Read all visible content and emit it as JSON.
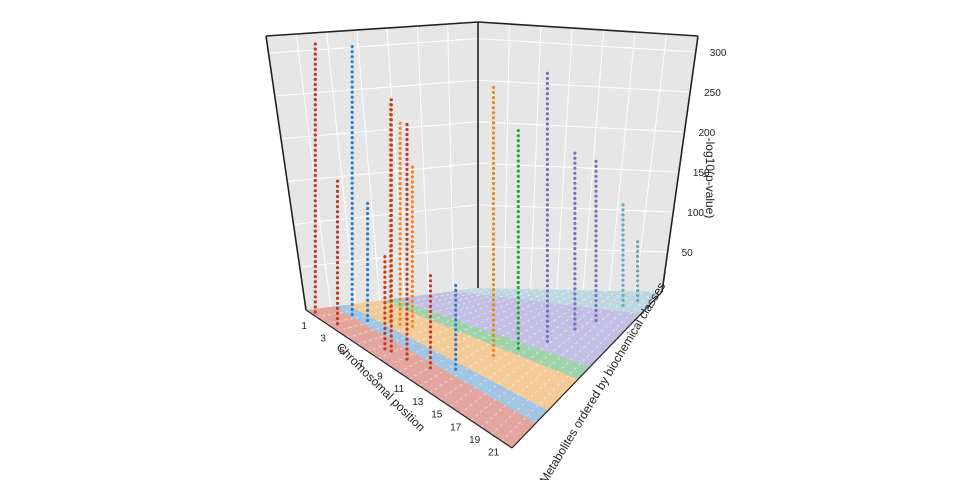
{
  "chart_data": {
    "type": "scatter",
    "projection": "3d",
    "title": "",
    "xlabel": "Chromosomal position",
    "ylabel": "Metabolites ordered by biochemical classes",
    "zlabel": "-log10(p-value)",
    "x_ticks": [
      "1",
      "3",
      "5",
      "7",
      "9",
      "11",
      "13",
      "15",
      "17",
      "19",
      "21"
    ],
    "z_ticks": [
      "50",
      "100",
      "150",
      "200",
      "250",
      "300"
    ],
    "zlim": [
      0,
      320
    ],
    "grid": true,
    "legend": "none",
    "colors": {
      "pane": "#e6e6e6",
      "gridline": "#ffffff",
      "lipid": "#c0392b",
      "amino": "#2e7fc1",
      "carbohydrate": "#e8891c",
      "nucleotide": "#2f9e44",
      "energy": "#7b6fc4",
      "other": "#6aa7b8"
    },
    "classes": [
      {
        "key": "lipid",
        "color": "#c0392b",
        "y_range": [
          0,
          0.16
        ]
      },
      {
        "key": "amino",
        "color": "#2e7fc1",
        "y_range": [
          0.16,
          0.24
        ]
      },
      {
        "key": "carbohydrate",
        "color": "#e8891c",
        "y_range": [
          0.24,
          0.44
        ]
      },
      {
        "key": "nucleotide",
        "color": "#2f9e44",
        "y_range": [
          0.44,
          0.52
        ]
      },
      {
        "key": "energy",
        "color": "#7b6fc4",
        "y_range": [
          0.52,
          0.86
        ]
      },
      {
        "key": "other",
        "color": "#6aa7b8",
        "y_range": [
          0.86,
          1.0
        ]
      }
    ],
    "peaks": [
      {
        "x": 1.0,
        "y": 0.03,
        "z": 320,
        "class": "lipid"
      },
      {
        "x": 2.2,
        "y": 0.18,
        "z": 320,
        "class": "amino"
      },
      {
        "x": 3.0,
        "y": 0.05,
        "z": 170,
        "class": "lipid"
      },
      {
        "x": 3.5,
        "y": 0.2,
        "z": 140,
        "class": "amino"
      },
      {
        "x": 4.5,
        "y": 0.28,
        "z": 260,
        "class": "carbohydrate"
      },
      {
        "x": 5.2,
        "y": 0.3,
        "z": 240,
        "class": "carbohydrate"
      },
      {
        "x": 6.0,
        "y": 0.33,
        "z": 190,
        "class": "carbohydrate"
      },
      {
        "x": 7.5,
        "y": 0.08,
        "z": 110,
        "class": "lipid"
      },
      {
        "x": 8.0,
        "y": 0.09,
        "z": 300,
        "class": "lipid"
      },
      {
        "x": 9.5,
        "y": 0.1,
        "z": 280,
        "class": "lipid"
      },
      {
        "x": 11.5,
        "y": 0.13,
        "z": 110,
        "class": "lipid"
      },
      {
        "x": 13.0,
        "y": 0.2,
        "z": 100,
        "class": "amino"
      },
      {
        "x": 14.0,
        "y": 0.38,
        "z": 320,
        "class": "carbohydrate"
      },
      {
        "x": 15.0,
        "y": 0.48,
        "z": 260,
        "class": "nucleotide"
      },
      {
        "x": 16.5,
        "y": 0.58,
        "z": 320,
        "class": "energy"
      },
      {
        "x": 17.5,
        "y": 0.7,
        "z": 210,
        "class": "energy"
      },
      {
        "x": 18.5,
        "y": 0.78,
        "z": 190,
        "class": "energy"
      },
      {
        "x": 19.5,
        "y": 0.9,
        "z": 120,
        "class": "other"
      },
      {
        "x": 20.5,
        "y": 0.94,
        "z": 70,
        "class": "other"
      }
    ]
  }
}
